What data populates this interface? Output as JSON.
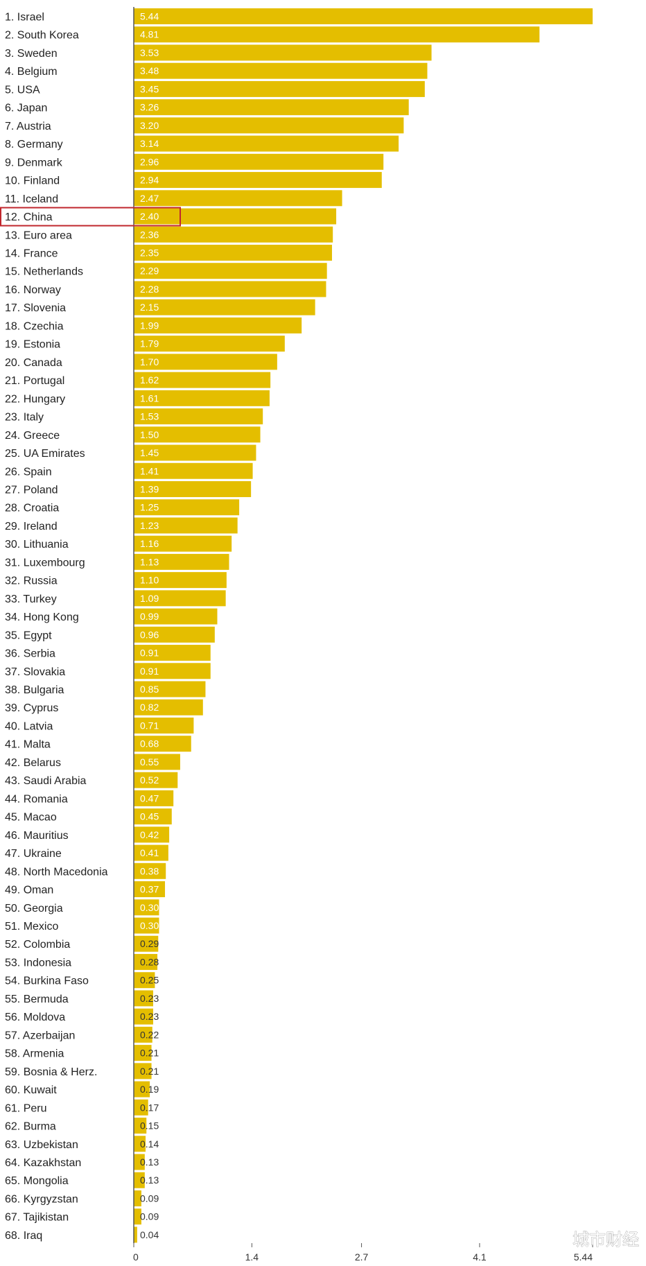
{
  "colors": {
    "bar": "#e4be00",
    "axis": "#555555",
    "highlight": "#c0272d",
    "background": "#ffffff"
  },
  "watermark": "城市财经",
  "highlight_row": "12. China",
  "chart_data": {
    "type": "bar",
    "orientation": "horizontal",
    "title": "",
    "xlabel": "",
    "ylabel": "",
    "xlim": [
      0,
      5.44
    ],
    "x_ticks": [
      "0",
      "1.4",
      "2.7",
      "4.1",
      "5.44"
    ],
    "grid": false,
    "categories": [
      "1. Israel",
      "2. South Korea",
      "3. Sweden",
      "4. Belgium",
      "5. USA",
      "6. Japan",
      "7. Austria",
      "8. Germany",
      "9. Denmark",
      "10. Finland",
      "11. Iceland",
      "12. China",
      "13. Euro area",
      "14. France",
      "15. Netherlands",
      "16. Norway",
      "17. Slovenia",
      "18. Czechia",
      "19. Estonia",
      "20. Canada",
      "21. Portugal",
      "22. Hungary",
      "23. Italy",
      "24. Greece",
      "25. UA Emirates",
      "26. Spain",
      "27. Poland",
      "28. Croatia",
      "29. Ireland",
      "30. Lithuania",
      "31. Luxembourg",
      "32. Russia",
      "33. Turkey",
      "34. Hong Kong",
      "35. Egypt",
      "36. Serbia",
      "37. Slovakia",
      "38. Bulgaria",
      "39. Cyprus",
      "40. Latvia",
      "41. Malta",
      "42. Belarus",
      "43. Saudi Arabia",
      "44. Romania",
      "45. Macao",
      "46. Mauritius",
      "47. Ukraine",
      "48. North Macedonia",
      "49. Oman",
      "50. Georgia",
      "51. Mexico",
      "52. Colombia",
      "53. Indonesia",
      "54. Burkina Faso",
      "55. Bermuda",
      "56. Moldova",
      "57. Azerbaijan",
      "58. Armenia",
      "59. Bosnia & Herz.",
      "60. Kuwait",
      "61. Peru",
      "62. Burma",
      "63. Uzbekistan",
      "64. Kazakhstan",
      "65. Mongolia",
      "66. Kyrgyzstan",
      "67. Tajikistan",
      "68. Iraq"
    ],
    "values": [
      5.44,
      4.81,
      3.53,
      3.48,
      3.45,
      3.26,
      3.2,
      3.14,
      2.96,
      2.94,
      2.47,
      2.4,
      2.36,
      2.35,
      2.29,
      2.28,
      2.15,
      1.99,
      1.79,
      1.7,
      1.62,
      1.61,
      1.53,
      1.5,
      1.45,
      1.41,
      1.39,
      1.25,
      1.23,
      1.16,
      1.13,
      1.1,
      1.09,
      0.99,
      0.96,
      0.91,
      0.91,
      0.85,
      0.82,
      0.71,
      0.68,
      0.55,
      0.52,
      0.47,
      0.45,
      0.42,
      0.41,
      0.38,
      0.37,
      0.3,
      0.3,
      0.29,
      0.28,
      0.25,
      0.23,
      0.23,
      0.22,
      0.21,
      0.21,
      0.19,
      0.17,
      0.15,
      0.14,
      0.13,
      0.13,
      0.09,
      0.09,
      0.04
    ],
    "value_labels": [
      "5.44",
      "4.81",
      "3.53",
      "3.48",
      "3.45",
      "3.26",
      "3.20",
      "3.14",
      "2.96",
      "2.94",
      "2.47",
      "2.40",
      "2.36",
      "2.35",
      "2.29",
      "2.28",
      "2.15",
      "1.99",
      "1.79",
      "1.70",
      "1.62",
      "1.61",
      "1.53",
      "1.50",
      "1.45",
      "1.41",
      "1.39",
      "1.25",
      "1.23",
      "1.16",
      "1.13",
      "1.10",
      "1.09",
      "0.99",
      "0.96",
      "0.91",
      "0.91",
      "0.85",
      "0.82",
      "0.71",
      "0.68",
      "0.55",
      "0.52",
      "0.47",
      "0.45",
      "0.42",
      "0.41",
      "0.38",
      "0.37",
      "0.30",
      "0.30",
      "0.29",
      "0.28",
      "0.25",
      "0.23",
      "0.23",
      "0.22",
      "0.21",
      "0.21",
      "0.19",
      "0.17",
      "0.15",
      "0.14",
      "0.13",
      "0.13",
      "0.09",
      "0.09",
      "0.04"
    ]
  }
}
